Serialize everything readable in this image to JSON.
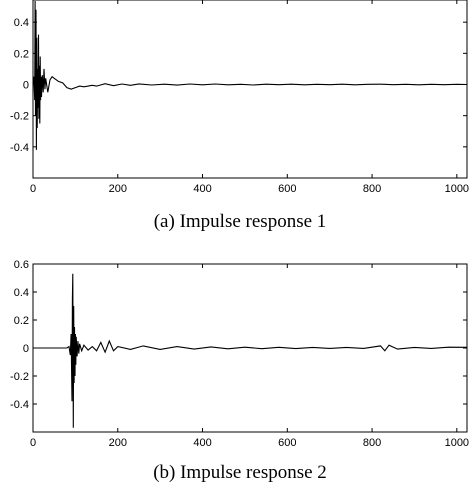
{
  "chart_data": [
    {
      "type": "line",
      "title": "",
      "caption": "(a) Impulse response 1",
      "xlabel": "",
      "ylabel": "",
      "xlim": [
        0,
        1024
      ],
      "ylim": [
        -0.6,
        0.6
      ],
      "xticks": [
        0,
        200,
        400,
        600,
        800,
        1000
      ],
      "xtick_labels": [
        "0",
        "200",
        "400",
        "600",
        "800",
        "1000"
      ],
      "yticks": [
        -0.4,
        -0.2,
        0,
        0.2,
        0.4
      ],
      "ytick_labels": [
        "-0.4",
        "-0.2",
        "0",
        "0.2",
        "0.4"
      ],
      "grid": false,
      "series": [
        {
          "x": [
            0,
            2,
            4,
            5,
            6,
            7,
            8,
            9,
            10,
            11,
            12,
            13,
            14,
            15,
            16,
            17,
            18,
            19,
            20,
            22,
            24,
            26,
            28,
            30,
            35,
            40,
            45,
            50,
            55,
            60,
            70,
            80,
            90,
            100,
            110,
            120,
            130,
            140,
            150,
            170,
            190,
            210,
            230,
            250,
            280,
            310,
            340,
            370,
            400,
            430,
            460,
            490,
            520,
            550,
            580,
            610,
            640,
            670,
            700,
            730,
            760,
            790,
            820,
            850,
            880,
            910,
            940,
            970,
            1000,
            1024
          ],
          "values": [
            0,
            0.05,
            -0.1,
            0.55,
            -0.2,
            0.48,
            -0.42,
            0.3,
            -0.28,
            0.1,
            -0.15,
            0.32,
            -0.22,
            0.12,
            -0.25,
            0.18,
            -0.1,
            0.05,
            -0.08,
            0.06,
            -0.05,
            0.1,
            -0.03,
            0.04,
            -0.05,
            0.03,
            0.05,
            0.04,
            0.03,
            0.02,
            0.01,
            -0.02,
            -0.03,
            -0.02,
            -0.01,
            -0.015,
            -0.01,
            -0.005,
            -0.01,
            0.005,
            -0.008,
            0.003,
            -0.005,
            0.004,
            -0.003,
            0.002,
            -0.004,
            0.003,
            -0.002,
            0.003,
            -0.002,
            0.001,
            -0.003,
            0.002,
            -0.001,
            0.002,
            -0.002,
            0.001,
            -0.001,
            0.002,
            -0.002,
            0.001,
            0.002,
            -0.001,
            0.001,
            -0.002,
            0.001,
            -0.001,
            0.001,
            0
          ]
        }
      ]
    },
    {
      "type": "line",
      "title": "",
      "caption": "(b) Impulse response 2",
      "xlabel": "",
      "ylabel": "",
      "xlim": [
        0,
        1024
      ],
      "ylim": [
        -0.6,
        0.6
      ],
      "xticks": [
        0,
        200,
        400,
        600,
        800,
        1000
      ],
      "xtick_labels": [
        "0",
        "200",
        "400",
        "600",
        "800",
        "1000"
      ],
      "yticks": [
        -0.4,
        -0.2,
        0,
        0.2,
        0.4,
        0.6
      ],
      "ytick_labels": [
        "-0.4",
        "-0.2",
        "0",
        "0.2",
        "0.4",
        "0.6"
      ],
      "grid": false,
      "series": [
        {
          "x": [
            0,
            80,
            85,
            88,
            90,
            92,
            93,
            94,
            95,
            96,
            97,
            98,
            99,
            100,
            101,
            102,
            104,
            106,
            108,
            110,
            115,
            120,
            130,
            140,
            150,
            160,
            170,
            180,
            190,
            200,
            230,
            260,
            300,
            340,
            380,
            420,
            460,
            500,
            540,
            580,
            620,
            660,
            700,
            740,
            780,
            820,
            830,
            840,
            860,
            900,
            940,
            980,
            1024
          ],
          "values": [
            0,
            0,
            0.01,
            -0.05,
            0.1,
            -0.38,
            0.35,
            0.53,
            -0.57,
            0.3,
            -0.25,
            0.15,
            -0.2,
            0.1,
            -0.12,
            0.08,
            -0.06,
            0.05,
            -0.04,
            0.03,
            -0.02,
            0.02,
            -0.015,
            0.01,
            -0.02,
            0.04,
            -0.03,
            0.05,
            -0.02,
            0.01,
            -0.01,
            0.015,
            -0.01,
            0.01,
            -0.008,
            0.008,
            -0.006,
            0.006,
            -0.005,
            0.005,
            -0.004,
            0.004,
            -0.003,
            0.004,
            -0.003,
            0.015,
            -0.02,
            0.02,
            -0.008,
            0.004,
            -0.003,
            0.006,
            0.005
          ]
        }
      ]
    }
  ]
}
